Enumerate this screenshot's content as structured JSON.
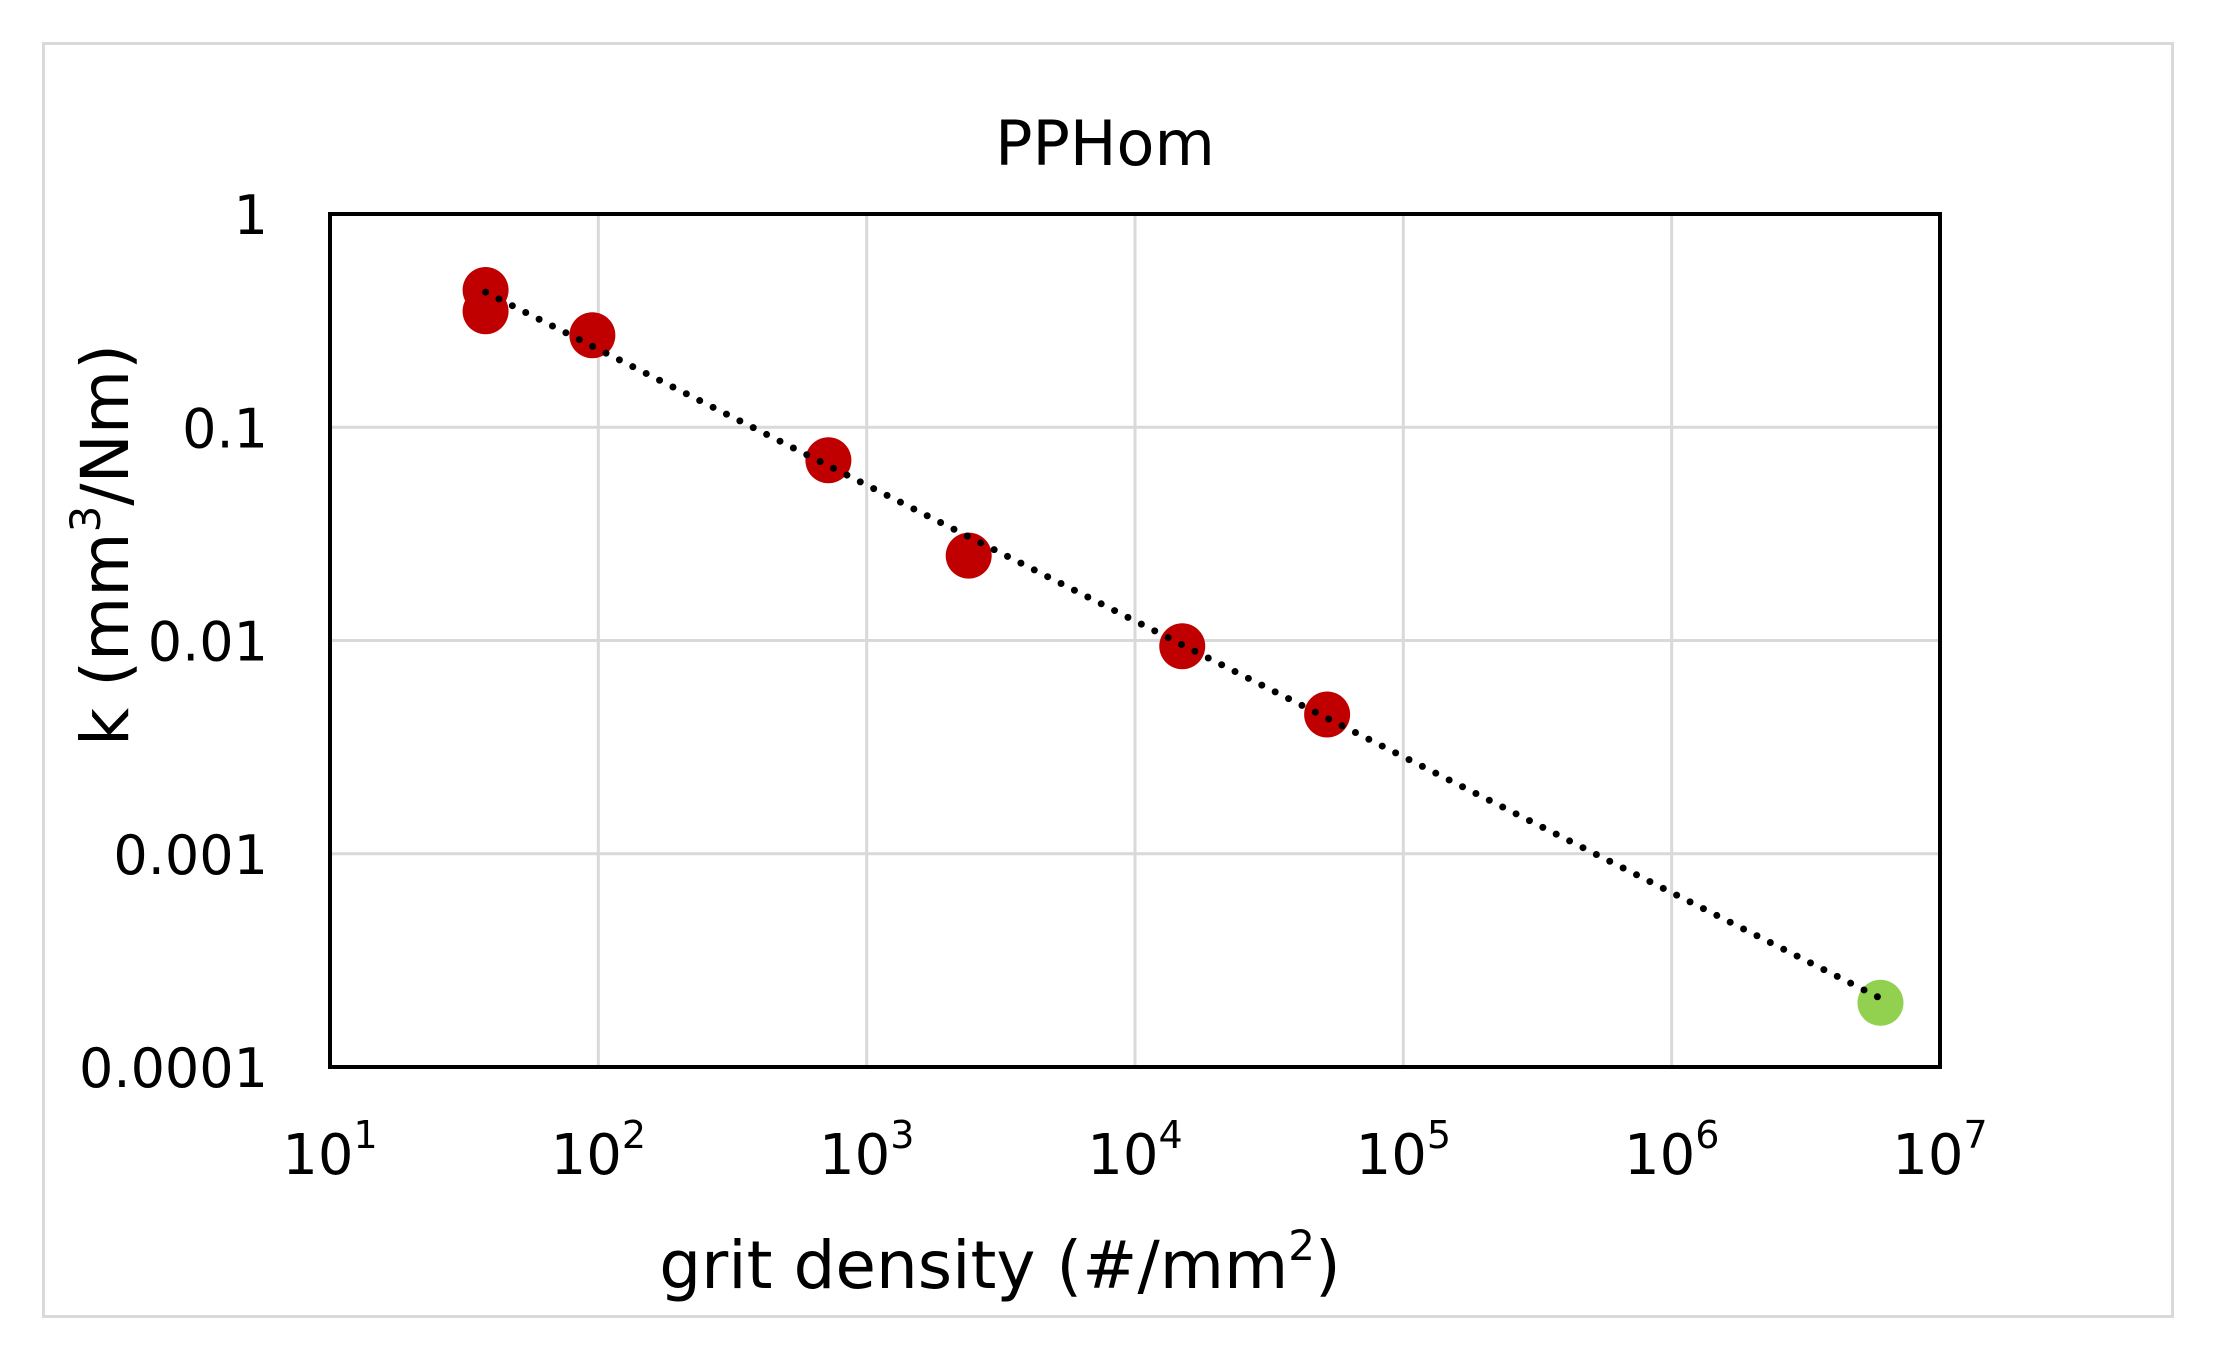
{
  "chart_data": {
    "type": "scatter",
    "title": "PPHom",
    "xlabel": "grit density (#/mm",
    "xlabel_sup": "2",
    "xlabel_end": ")",
    "ylabel": "k (mm",
    "ylabel_sup": "3",
    "ylabel_end": "/Nm)",
    "x_scale": "log",
    "y_scale": "log",
    "xlim": [
      10,
      10000000
    ],
    "ylim": [
      0.0001,
      1
    ],
    "x_ticks": [
      {
        "base": "10",
        "exp": "1",
        "value": 10
      },
      {
        "base": "10",
        "exp": "2",
        "value": 100
      },
      {
        "base": "10",
        "exp": "3",
        "value": 1000
      },
      {
        "base": "10",
        "exp": "4",
        "value": 10000
      },
      {
        "base": "10",
        "exp": "5",
        "value": 100000
      },
      {
        "base": "10",
        "exp": "6",
        "value": 1000000
      },
      {
        "base": "10",
        "exp": "7",
        "value": 10000000
      }
    ],
    "y_ticks": [
      {
        "label": "1",
        "value": 1
      },
      {
        "label": "0.1",
        "value": 0.1
      },
      {
        "label": "0.01",
        "value": 0.01
      },
      {
        "label": "0.001",
        "value": 0.001
      },
      {
        "label": "0.0001",
        "value": 0.0001
      }
    ],
    "grid": true,
    "legend": "none",
    "series": [
      {
        "color": "#c00000",
        "points": [
          {
            "x": 38,
            "y": 0.44
          },
          {
            "x": 38,
            "y": 0.35
          },
          {
            "x": 95,
            "y": 0.27
          },
          {
            "x": 720,
            "y": 0.07
          },
          {
            "x": 2400,
            "y": 0.025
          },
          {
            "x": 15000,
            "y": 0.0094
          },
          {
            "x": 52000,
            "y": 0.0045
          }
        ]
      },
      {
        "color": "#92d050",
        "points": [
          {
            "x": 6000000,
            "y": 0.0002
          }
        ]
      }
    ],
    "trendline": {
      "style": "dotted",
      "color": "#000000",
      "points": [
        {
          "x": 38,
          "y": 0.43
        },
        {
          "x": 6000000,
          "y": 0.00021
        }
      ]
    }
  }
}
